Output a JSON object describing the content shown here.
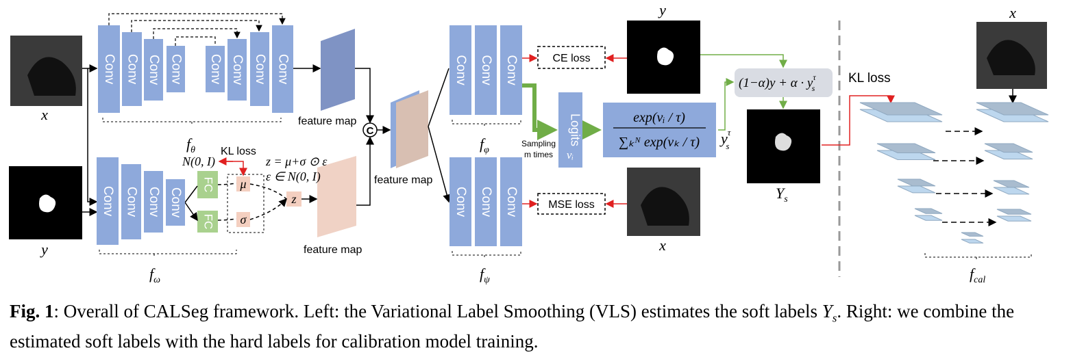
{
  "inputs": {
    "x": "x",
    "y": "y"
  },
  "encoder_theta": {
    "blocks": [
      "Conv",
      "Conv",
      "Conv",
      "Conv",
      "Conv",
      "Conv",
      "Conv",
      "Conv"
    ],
    "label": {
      "base": "f",
      "sub": "θ"
    }
  },
  "encoder_omega": {
    "blocks": [
      "Conv",
      "Conv",
      "Conv",
      "Conv"
    ],
    "fc": [
      "FC",
      "FC"
    ],
    "mu": "μ",
    "sigma": "σ",
    "z": "z",
    "label": {
      "base": "f",
      "sub": "ω"
    }
  },
  "latent": {
    "kl_loss": "KL loss",
    "prior": "N(0, I)",
    "reparam": "z = μ+σ ⊙ ε",
    "noise": "ε ∈ N(0, I)"
  },
  "feature_maps": [
    "feature map",
    "feature map",
    "feature map"
  ],
  "concat": "C",
  "decoder_phi": {
    "blocks": [
      "Conv",
      "Conv",
      "Conv"
    ],
    "label": {
      "base": "f",
      "sub": "φ"
    }
  },
  "decoder_psi": {
    "blocks": [
      "Conv",
      "Conv",
      "Conv"
    ],
    "label": {
      "base": "f",
      "sub": "ψ"
    }
  },
  "losses": {
    "ce": "CE loss",
    "mse": "MSE loss"
  },
  "targets": {
    "y": "y",
    "x": "x"
  },
  "logits": {
    "label": "Logits",
    "var": "νᵢ",
    "sampling": [
      "Sampling",
      "m times"
    ]
  },
  "softmax": {
    "numerator": "exp(νᵢ / τ)",
    "denominator": "∑ₖᴺ exp(νₖ / τ)",
    "output": {
      "base": "y",
      "sub": "s",
      "sup": "τ"
    }
  },
  "mixing": {
    "formula": "(1−α)y + α · y",
    "sub": "s",
    "sup": "τ"
  },
  "soft_label": {
    "base": "Y",
    "sub": "s"
  },
  "right": {
    "x": "x",
    "kl_loss": "KL loss",
    "label": {
      "base": "f",
      "sub": "cal"
    }
  },
  "caption": {
    "label": "Fig. 1",
    "text": ": Overall of CALSeg framework. Left: the Variational Label Smoothing (VLS) estimates the soft labels ",
    "math": {
      "base": "Y",
      "sub": "s"
    },
    "text2": ". Right: we combine the estimated soft labels with the hard labels for calibration model training."
  }
}
